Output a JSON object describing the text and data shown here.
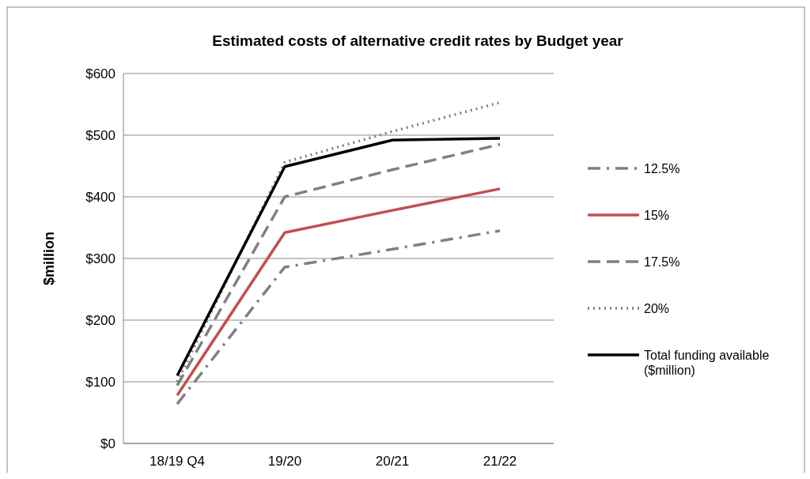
{
  "chart_data": {
    "type": "line",
    "title": "Estimated costs of alternative credit rates by Budget year",
    "ylabel": "$million",
    "categories": [
      "18/19 Q4",
      "19/20",
      "20/21",
      "21/22"
    ],
    "series": [
      {
        "name": "12.5%",
        "color": "#808080",
        "line_style": "dashdot",
        "values": [
          64,
          286,
          315,
          345
        ]
      },
      {
        "name": "15%",
        "color": "#c0504d",
        "line_style": "solid",
        "values": [
          78,
          342,
          378,
          413
        ]
      },
      {
        "name": "17.5%",
        "color": "#808080",
        "line_style": "dashed",
        "values": [
          94,
          400,
          444,
          485
        ]
      },
      {
        "name": "20%",
        "color": "#808080",
        "line_style": "dotted",
        "values": [
          100,
          456,
          506,
          553
        ]
      },
      {
        "name": "Total funding available ($million)",
        "color": "#000000",
        "line_style": "solid",
        "values": [
          110,
          449,
          492,
          495
        ]
      }
    ],
    "ylim": [
      0,
      600
    ],
    "yticks": [
      {
        "value": 0,
        "label": "$0"
      },
      {
        "value": 100,
        "label": "$100"
      },
      {
        "value": 200,
        "label": "$200"
      },
      {
        "value": 300,
        "label": "$300"
      },
      {
        "value": 400,
        "label": "$400"
      },
      {
        "value": 500,
        "label": "$500"
      },
      {
        "value": 600,
        "label": "$600"
      }
    ],
    "grid": "y",
    "legend": "right"
  }
}
